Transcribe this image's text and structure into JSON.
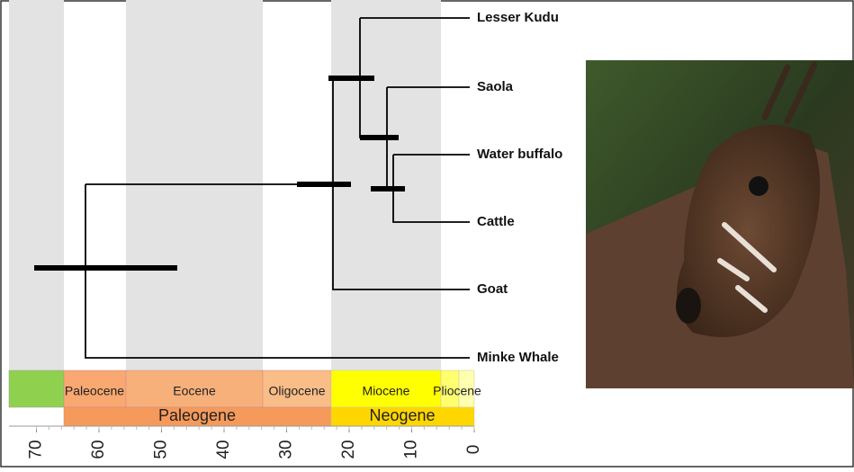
{
  "taxa": [
    "Lesser Kudu",
    "Saola",
    "Water buffalo",
    "Cattle",
    "Goat",
    "Minke Whale"
  ],
  "epochs": [
    "Paleocene",
    "Eocene",
    "Oligocene",
    "Miocene",
    "Pliocene"
  ],
  "periods": [
    "Paleogene",
    "Neogene"
  ],
  "axis": {
    "ticks": [
      70,
      60,
      50,
      40,
      30,
      20,
      10,
      0
    ]
  }
}
